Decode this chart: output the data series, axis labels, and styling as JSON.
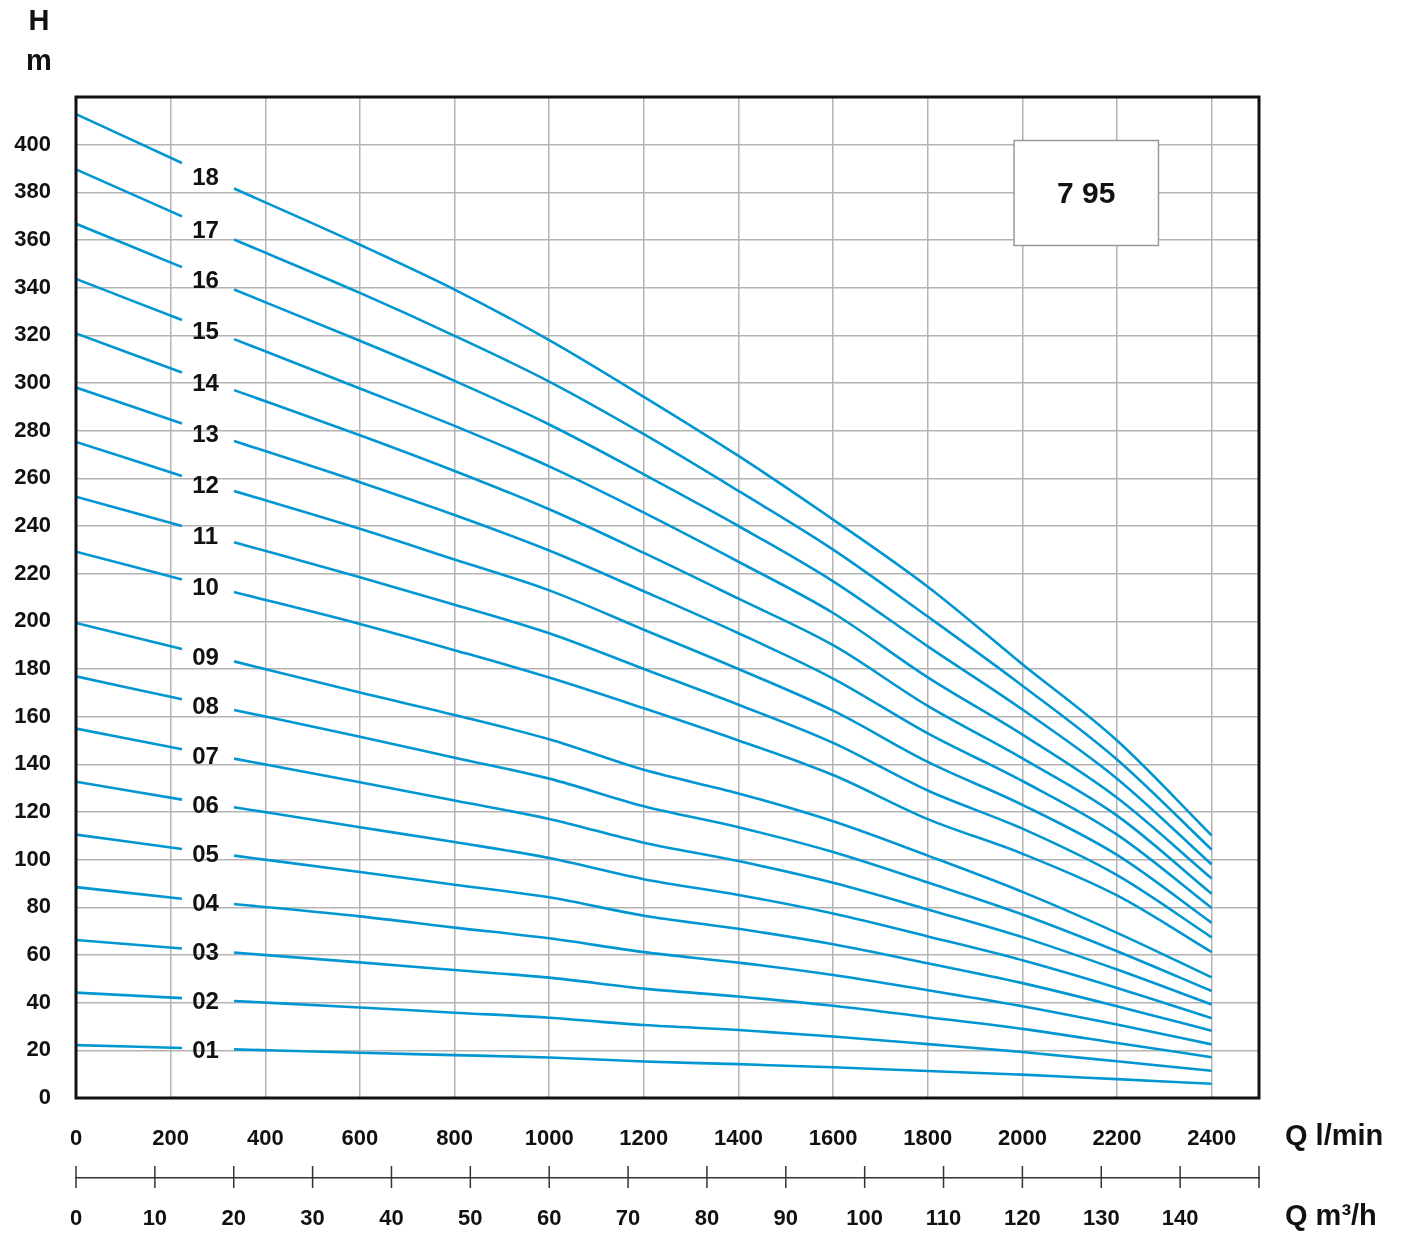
{
  "chart_data": {
    "type": "line",
    "xlabel": "Q l/min",
    "x2label": "Q m³/h",
    "ylabel": "H m",
    "annotations": [
      "7 95"
    ],
    "x": [
      0,
      224,
      280,
      334,
      600,
      800,
      1000,
      1200,
      1400,
      1600,
      1800,
      2000,
      2200,
      2400
    ],
    "xlim": [
      0,
      2500
    ],
    "xticks": [
      0,
      200,
      400,
      600,
      800,
      1000,
      1200,
      1400,
      1600,
      1800,
      2000,
      2200,
      2400
    ],
    "x2lim": [
      0,
      150
    ],
    "x2ticks": [
      0,
      10,
      20,
      30,
      40,
      50,
      60,
      70,
      80,
      90,
      100,
      110,
      120,
      130,
      140,
      {
        "value": 150,
        "label": null
      }
    ],
    "ylim": [
      0,
      420
    ],
    "yticks": [
      0,
      20,
      40,
      60,
      80,
      100,
      120,
      140,
      160,
      180,
      200,
      220,
      240,
      260,
      280,
      300,
      320,
      340,
      360,
      380,
      400
    ],
    "grid": true,
    "legend": false,
    "marker": "none",
    "line_style": "solid",
    "series": [
      {
        "name": "01",
        "color": "#0096d2",
        "values": [
          22.2,
          21.0,
          null,
          20.4,
          19.0,
          18.0,
          17.0,
          15.3,
          14.2,
          12.9,
          11.3,
          9.8,
          7.9,
          6.0
        ]
      },
      {
        "name": "02",
        "color": "#0096d2",
        "values": [
          44.2,
          41.9,
          null,
          40.7,
          38.0,
          35.8,
          33.7,
          30.6,
          28.5,
          25.8,
          22.6,
          19.3,
          15.4,
          11.4
        ]
      },
      {
        "name": "03",
        "color": "#0096d2",
        "values": [
          66.3,
          62.7,
          null,
          61.0,
          56.9,
          53.7,
          50.5,
          45.9,
          42.6,
          38.7,
          33.9,
          29.0,
          23.1,
          17.1
        ]
      },
      {
        "name": "04",
        "color": "#0096d2",
        "values": [
          88.5,
          83.6,
          null,
          81.4,
          76.2,
          71.5,
          67.0,
          61.2,
          56.8,
          51.6,
          45.2,
          38.5,
          30.8,
          22.5
        ]
      },
      {
        "name": "05",
        "color": "#0096d2",
        "values": [
          110.5,
          104.5,
          null,
          101.7,
          94.8,
          89.5,
          84.2,
          76.5,
          71.0,
          64.5,
          56.5,
          48.2,
          38.5,
          28.2
        ]
      },
      {
        "name": "06",
        "color": "#0096d2",
        "values": [
          132.7,
          125.2,
          null,
          122.0,
          113.6,
          107.4,
          100.7,
          91.8,
          85.2,
          77.4,
          67.8,
          57.8,
          46.2,
          33.5
        ]
      },
      {
        "name": "07",
        "color": "#0096d2",
        "values": [
          155.0,
          146.3,
          null,
          142.4,
          132.5,
          124.8,
          117.1,
          107.1,
          99.4,
          90.3,
          79.1,
          67.5,
          53.9,
          39.2
        ]
      },
      {
        "name": "08",
        "color": "#0096d2",
        "values": [
          176.9,
          167.3,
          null,
          162.8,
          151.6,
          142.8,
          134.0,
          122.4,
          113.6,
          103.2,
          90.4,
          77.0,
          61.6,
          44.9
        ]
      },
      {
        "name": "09",
        "color": "#0096d2",
        "values": [
          199.3,
          188.4,
          null,
          183.2,
          170.1,
          160.7,
          150.5,
          137.7,
          127.8,
          116.1,
          101.7,
          86.5,
          69.3,
          50.6
        ]
      },
      {
        "name": "10",
        "color": "#0096d2",
        "values": [
          229.2,
          217.6,
          null,
          212.3,
          198.9,
          187.9,
          176.4,
          163.5,
          150.0,
          135.5,
          117.0,
          102.5,
          85.0,
          61.2
        ]
      },
      {
        "name": "11",
        "color": "#0096d2",
        "values": [
          252.3,
          240.0,
          null,
          233.2,
          218.5,
          207.0,
          195.0,
          180.0,
          165.0,
          149.0,
          129.0,
          113.0,
          93.5,
          67.4
        ]
      },
      {
        "name": "12",
        "color": "#0096d2",
        "values": [
          275.3,
          261.0,
          null,
          254.7,
          238.8,
          225.9,
          213.0,
          196.5,
          180.0,
          162.5,
          141.0,
          123.0,
          102.0,
          73.5
        ]
      },
      {
        "name": "13",
        "color": "#0096d2",
        "values": [
          298.1,
          283.0,
          null,
          275.7,
          258.4,
          244.6,
          229.7,
          212.6,
          195.0,
          176.0,
          153.0,
          133.0,
          110.5,
          79.7
        ]
      },
      {
        "name": "14",
        "color": "#0096d2",
        "values": [
          320.8,
          304.4,
          null,
          297.0,
          278.1,
          263.1,
          247.0,
          228.7,
          209.5,
          190.0,
          164.5,
          142.5,
          118.5,
          85.7
        ]
      },
      {
        "name": "15",
        "color": "#0096d2",
        "values": [
          343.7,
          326.4,
          null,
          318.4,
          297.7,
          282.0,
          265.0,
          245.6,
          225.0,
          203.5,
          176.5,
          152.5,
          126.0,
          92.1
        ]
      },
      {
        "name": "16",
        "color": "#0096d2",
        "values": [
          366.8,
          348.6,
          null,
          339.2,
          317.7,
          300.9,
          282.6,
          261.7,
          240.0,
          216.8,
          189.5,
          163.0,
          134.0,
          98.0
        ]
      },
      {
        "name": "17",
        "color": "#0096d2",
        "values": [
          389.6,
          369.9,
          null,
          360.2,
          337.8,
          319.8,
          300.6,
          278.5,
          254.7,
          230.1,
          202.0,
          173.0,
          142.0,
          104.2
        ]
      },
      {
        "name": "18",
        "color": "#0096d2",
        "values": [
          412.8,
          392.3,
          null,
          381.6,
          358.0,
          339.2,
          318.0,
          294.2,
          269.4,
          242.7,
          214.5,
          182.0,
          150.0,
          110.2
        ]
      }
    ]
  }
}
